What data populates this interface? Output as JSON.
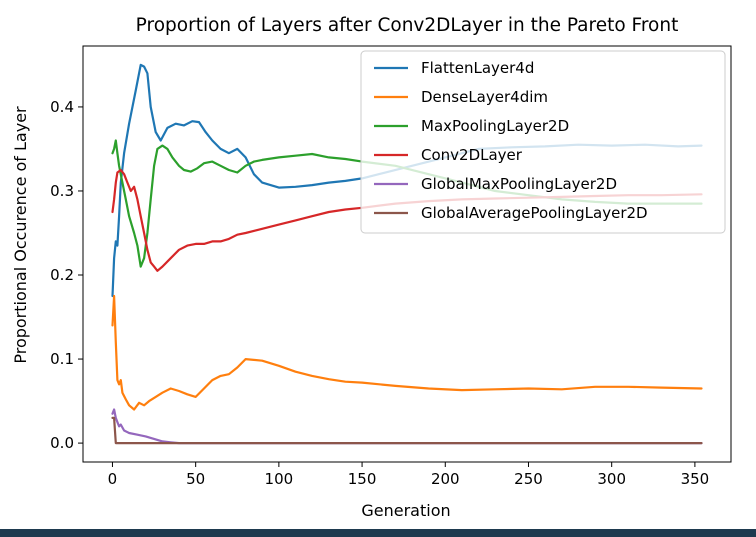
{
  "chart_data": {
    "type": "line",
    "title": "Proportion of Layers after Conv2DLayer in the Pareto Front",
    "xlabel": "Generation",
    "ylabel": "Proportional Occurence of Layer",
    "xlim": [
      -17.7,
      371.7
    ],
    "ylim": [
      -0.0225,
      0.4725
    ],
    "xticks": [
      0,
      50,
      100,
      150,
      200,
      250,
      300,
      350
    ],
    "yticks": [
      0.0,
      0.1,
      0.2,
      0.3,
      0.4
    ],
    "ytick_labels": [
      "0.0",
      "0.1",
      "0.2",
      "0.3",
      "0.4"
    ],
    "grid": false,
    "legend_position": "upper right",
    "series": [
      {
        "name": "FlattenLayer4d",
        "color": "#1f77b4",
        "points": [
          [
            0,
            0.175
          ],
          [
            1,
            0.22
          ],
          [
            2,
            0.24
          ],
          [
            3,
            0.235
          ],
          [
            4,
            0.27
          ],
          [
            5,
            0.31
          ],
          [
            7,
            0.345
          ],
          [
            10,
            0.38
          ],
          [
            14,
            0.42
          ],
          [
            17,
            0.45
          ],
          [
            19,
            0.448
          ],
          [
            21,
            0.44
          ],
          [
            23,
            0.4
          ],
          [
            26,
            0.37
          ],
          [
            29,
            0.36
          ],
          [
            33,
            0.375
          ],
          [
            38,
            0.38
          ],
          [
            43,
            0.378
          ],
          [
            48,
            0.383
          ],
          [
            52,
            0.382
          ],
          [
            56,
            0.37
          ],
          [
            60,
            0.36
          ],
          [
            65,
            0.35
          ],
          [
            70,
            0.345
          ],
          [
            75,
            0.35
          ],
          [
            80,
            0.34
          ],
          [
            85,
            0.32
          ],
          [
            90,
            0.31
          ],
          [
            95,
            0.307
          ],
          [
            100,
            0.304
          ],
          [
            110,
            0.305
          ],
          [
            120,
            0.307
          ],
          [
            130,
            0.31
          ],
          [
            140,
            0.312
          ],
          [
            150,
            0.315
          ],
          [
            160,
            0.32
          ],
          [
            180,
            0.33
          ],
          [
            200,
            0.34
          ],
          [
            220,
            0.35
          ],
          [
            240,
            0.352
          ],
          [
            260,
            0.353
          ],
          [
            280,
            0.355
          ],
          [
            300,
            0.354
          ],
          [
            320,
            0.355
          ],
          [
            340,
            0.353
          ],
          [
            354,
            0.354
          ]
        ]
      },
      {
        "name": "DenseLayer4dim",
        "color": "#ff7f0e",
        "points": [
          [
            0,
            0.14
          ],
          [
            1,
            0.175
          ],
          [
            2,
            0.12
          ],
          [
            3,
            0.075
          ],
          [
            4,
            0.07
          ],
          [
            5,
            0.075
          ],
          [
            6,
            0.06
          ],
          [
            8,
            0.052
          ],
          [
            10,
            0.045
          ],
          [
            13,
            0.04
          ],
          [
            16,
            0.048
          ],
          [
            19,
            0.045
          ],
          [
            22,
            0.05
          ],
          [
            26,
            0.055
          ],
          [
            30,
            0.06
          ],
          [
            35,
            0.065
          ],
          [
            40,
            0.062
          ],
          [
            45,
            0.058
          ],
          [
            50,
            0.055
          ],
          [
            55,
            0.065
          ],
          [
            60,
            0.075
          ],
          [
            65,
            0.08
          ],
          [
            70,
            0.082
          ],
          [
            75,
            0.09
          ],
          [
            80,
            0.1
          ],
          [
            90,
            0.098
          ],
          [
            100,
            0.092
          ],
          [
            110,
            0.085
          ],
          [
            120,
            0.08
          ],
          [
            130,
            0.076
          ],
          [
            140,
            0.073
          ],
          [
            150,
            0.072
          ],
          [
            170,
            0.068
          ],
          [
            190,
            0.065
          ],
          [
            210,
            0.063
          ],
          [
            230,
            0.064
          ],
          [
            250,
            0.065
          ],
          [
            270,
            0.064
          ],
          [
            290,
            0.067
          ],
          [
            310,
            0.067
          ],
          [
            330,
            0.066
          ],
          [
            354,
            0.065
          ]
        ]
      },
      {
        "name": "MaxPoolingLayer2D",
        "color": "#2ca02c",
        "points": [
          [
            0,
            0.345
          ],
          [
            1,
            0.35
          ],
          [
            2,
            0.36
          ],
          [
            3,
            0.345
          ],
          [
            4,
            0.33
          ],
          [
            6,
            0.31
          ],
          [
            8,
            0.29
          ],
          [
            10,
            0.27
          ],
          [
            13,
            0.25
          ],
          [
            15,
            0.235
          ],
          [
            17,
            0.21
          ],
          [
            19,
            0.22
          ],
          [
            21,
            0.25
          ],
          [
            23,
            0.29
          ],
          [
            25,
            0.33
          ],
          [
            27,
            0.35
          ],
          [
            30,
            0.354
          ],
          [
            33,
            0.35
          ],
          [
            36,
            0.34
          ],
          [
            40,
            0.33
          ],
          [
            43,
            0.325
          ],
          [
            47,
            0.323
          ],
          [
            51,
            0.327
          ],
          [
            55,
            0.333
          ],
          [
            60,
            0.335
          ],
          [
            65,
            0.33
          ],
          [
            70,
            0.325
          ],
          [
            75,
            0.322
          ],
          [
            80,
            0.33
          ],
          [
            85,
            0.335
          ],
          [
            90,
            0.337
          ],
          [
            100,
            0.34
          ],
          [
            110,
            0.342
          ],
          [
            120,
            0.344
          ],
          [
            130,
            0.34
          ],
          [
            140,
            0.338
          ],
          [
            150,
            0.335
          ],
          [
            170,
            0.33
          ],
          [
            190,
            0.32
          ],
          [
            210,
            0.31
          ],
          [
            230,
            0.3
          ],
          [
            250,
            0.295
          ],
          [
            270,
            0.29
          ],
          [
            290,
            0.287
          ],
          [
            310,
            0.285
          ],
          [
            330,
            0.285
          ],
          [
            354,
            0.285
          ]
        ]
      },
      {
        "name": "Conv2DLayer",
        "color": "#d62728",
        "points": [
          [
            0,
            0.275
          ],
          [
            1,
            0.29
          ],
          [
            2,
            0.31
          ],
          [
            3,
            0.322
          ],
          [
            5,
            0.325
          ],
          [
            7,
            0.32
          ],
          [
            9,
            0.31
          ],
          [
            11,
            0.3
          ],
          [
            13,
            0.305
          ],
          [
            15,
            0.29
          ],
          [
            17,
            0.27
          ],
          [
            19,
            0.25
          ],
          [
            21,
            0.23
          ],
          [
            23,
            0.215
          ],
          [
            25,
            0.21
          ],
          [
            27,
            0.205
          ],
          [
            30,
            0.21
          ],
          [
            35,
            0.22
          ],
          [
            40,
            0.23
          ],
          [
            45,
            0.235
          ],
          [
            50,
            0.237
          ],
          [
            55,
            0.237
          ],
          [
            60,
            0.24
          ],
          [
            65,
            0.24
          ],
          [
            70,
            0.243
          ],
          [
            75,
            0.248
          ],
          [
            80,
            0.25
          ],
          [
            90,
            0.255
          ],
          [
            100,
            0.26
          ],
          [
            110,
            0.265
          ],
          [
            120,
            0.27
          ],
          [
            130,
            0.275
          ],
          [
            140,
            0.278
          ],
          [
            150,
            0.28
          ],
          [
            170,
            0.285
          ],
          [
            190,
            0.288
          ],
          [
            210,
            0.29
          ],
          [
            230,
            0.291
          ],
          [
            250,
            0.292
          ],
          [
            270,
            0.293
          ],
          [
            290,
            0.294
          ],
          [
            310,
            0.295
          ],
          [
            330,
            0.295
          ],
          [
            354,
            0.296
          ]
        ]
      },
      {
        "name": "GlobalMaxPoolingLayer2D",
        "color": "#9467bd",
        "points": [
          [
            0,
            0.035
          ],
          [
            1,
            0.04
          ],
          [
            2,
            0.03
          ],
          [
            3,
            0.025
          ],
          [
            4,
            0.02
          ],
          [
            5,
            0.022
          ],
          [
            7,
            0.015
          ],
          [
            10,
            0.012
          ],
          [
            15,
            0.01
          ],
          [
            20,
            0.008
          ],
          [
            25,
            0.005
          ],
          [
            30,
            0.002
          ],
          [
            35,
            0.001
          ],
          [
            40,
            0.0
          ],
          [
            354,
            0.0
          ]
        ]
      },
      {
        "name": "GlobalAveragePoolingLayer2D",
        "color": "#8c564b",
        "points": [
          [
            0,
            0.03
          ],
          [
            1,
            0.03
          ],
          [
            2,
            0.0
          ],
          [
            354,
            0.0
          ]
        ]
      }
    ]
  }
}
